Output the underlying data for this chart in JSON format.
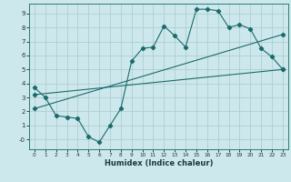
{
  "xlabel": "Humidex (Indice chaleur)",
  "ylabel": "",
  "bg_color": "#cde8ec",
  "grid_color": "#b0cdd2",
  "line_color": "#1a6b6b",
  "xlim": [
    -0.5,
    23.5
  ],
  "ylim": [
    -0.7,
    9.7
  ],
  "xticks": [
    0,
    1,
    2,
    3,
    4,
    5,
    6,
    7,
    8,
    9,
    10,
    11,
    12,
    13,
    14,
    15,
    16,
    17,
    18,
    19,
    20,
    21,
    22,
    23
  ],
  "yticks": [
    0,
    1,
    2,
    3,
    4,
    5,
    6,
    7,
    8,
    9
  ],
  "ytick_labels": [
    "-0",
    "1",
    "2",
    "3",
    "4",
    "5",
    "6",
    "7",
    "8",
    "9"
  ],
  "series1_x": [
    0,
    1,
    2,
    3,
    4,
    5,
    6,
    7,
    8,
    9,
    10,
    11,
    12,
    13,
    14,
    15,
    16,
    17,
    18,
    19,
    20,
    21,
    22,
    23
  ],
  "series1_y": [
    3.7,
    3.0,
    1.7,
    1.6,
    1.5,
    0.2,
    -0.2,
    1.0,
    2.2,
    5.6,
    6.5,
    6.6,
    8.1,
    7.4,
    6.6,
    9.3,
    9.3,
    9.2,
    8.0,
    8.2,
    7.9,
    6.5,
    5.9,
    5.0
  ],
  "series2_x": [
    0,
    23
  ],
  "series2_y": [
    3.2,
    5.0
  ],
  "series3_x": [
    0,
    23
  ],
  "series3_y": [
    2.2,
    7.5
  ]
}
